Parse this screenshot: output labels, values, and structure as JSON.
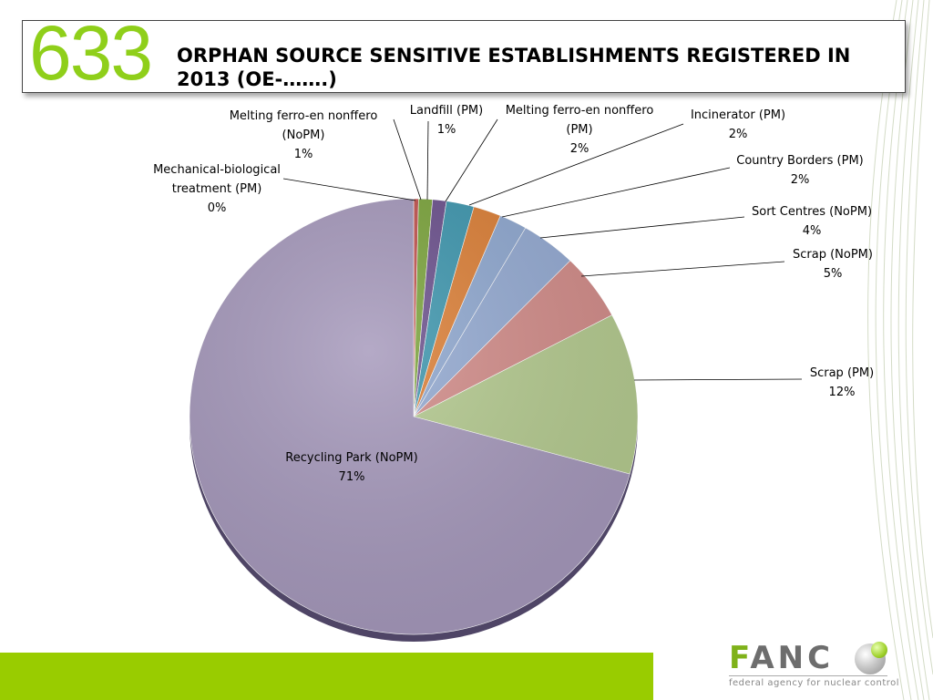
{
  "header": {
    "number": "633",
    "title": "ORPHAN SOURCE SENSITIVE ESTABLISHMENTS REGISTERED IN 2013 (OE-…….)"
  },
  "colors": {
    "accent_green": "#99cc00",
    "number_green": "#8fcf1a"
  },
  "logo": {
    "name": "FANC",
    "tagline": "federal agency for nuclear control"
  },
  "chart_data": {
    "type": "pie",
    "title": "",
    "slices": [
      {
        "label": [
          "Mechanical-biological",
          "treatment (PM)"
        ],
        "value": 0,
        "percent": "0%",
        "color": "#c0504d"
      },
      {
        "label": [
          "Melting ferro-en nonffero",
          "(NoPM)"
        ],
        "value": 1,
        "percent": "1%",
        "color": "#7aa33a"
      },
      {
        "label": [
          "Landfill (PM)"
        ],
        "value": 1,
        "percent": "1%",
        "color": "#6a4f8c"
      },
      {
        "label": [
          "Melting ferro-en nonffero",
          "(PM)"
        ],
        "value": 2,
        "percent": "2%",
        "color": "#3c95ad"
      },
      {
        "label": [
          "Incinerator (PM)"
        ],
        "value": 2,
        "percent": "2%",
        "color": "#db7e35"
      },
      {
        "label": [
          "Country Borders (PM)"
        ],
        "value": 2,
        "percent": "2%",
        "color": "#8ea7cf"
      },
      {
        "label": [
          "Sort Centres (NoPM)"
        ],
        "value": 4,
        "percent": "4%",
        "color": "#93a9d1"
      },
      {
        "label": [
          "Scrap (NoPM)"
        ],
        "value": 5,
        "percent": "5%",
        "color": "#d18b88"
      },
      {
        "label": [
          "Scrap (PM)"
        ],
        "value": 12,
        "percent": "12%",
        "color": "#b3c98e"
      },
      {
        "label": [
          "Recycling Park (NoPM)"
        ],
        "value": 71,
        "percent": "71%",
        "color": "#a497ba"
      }
    ]
  }
}
